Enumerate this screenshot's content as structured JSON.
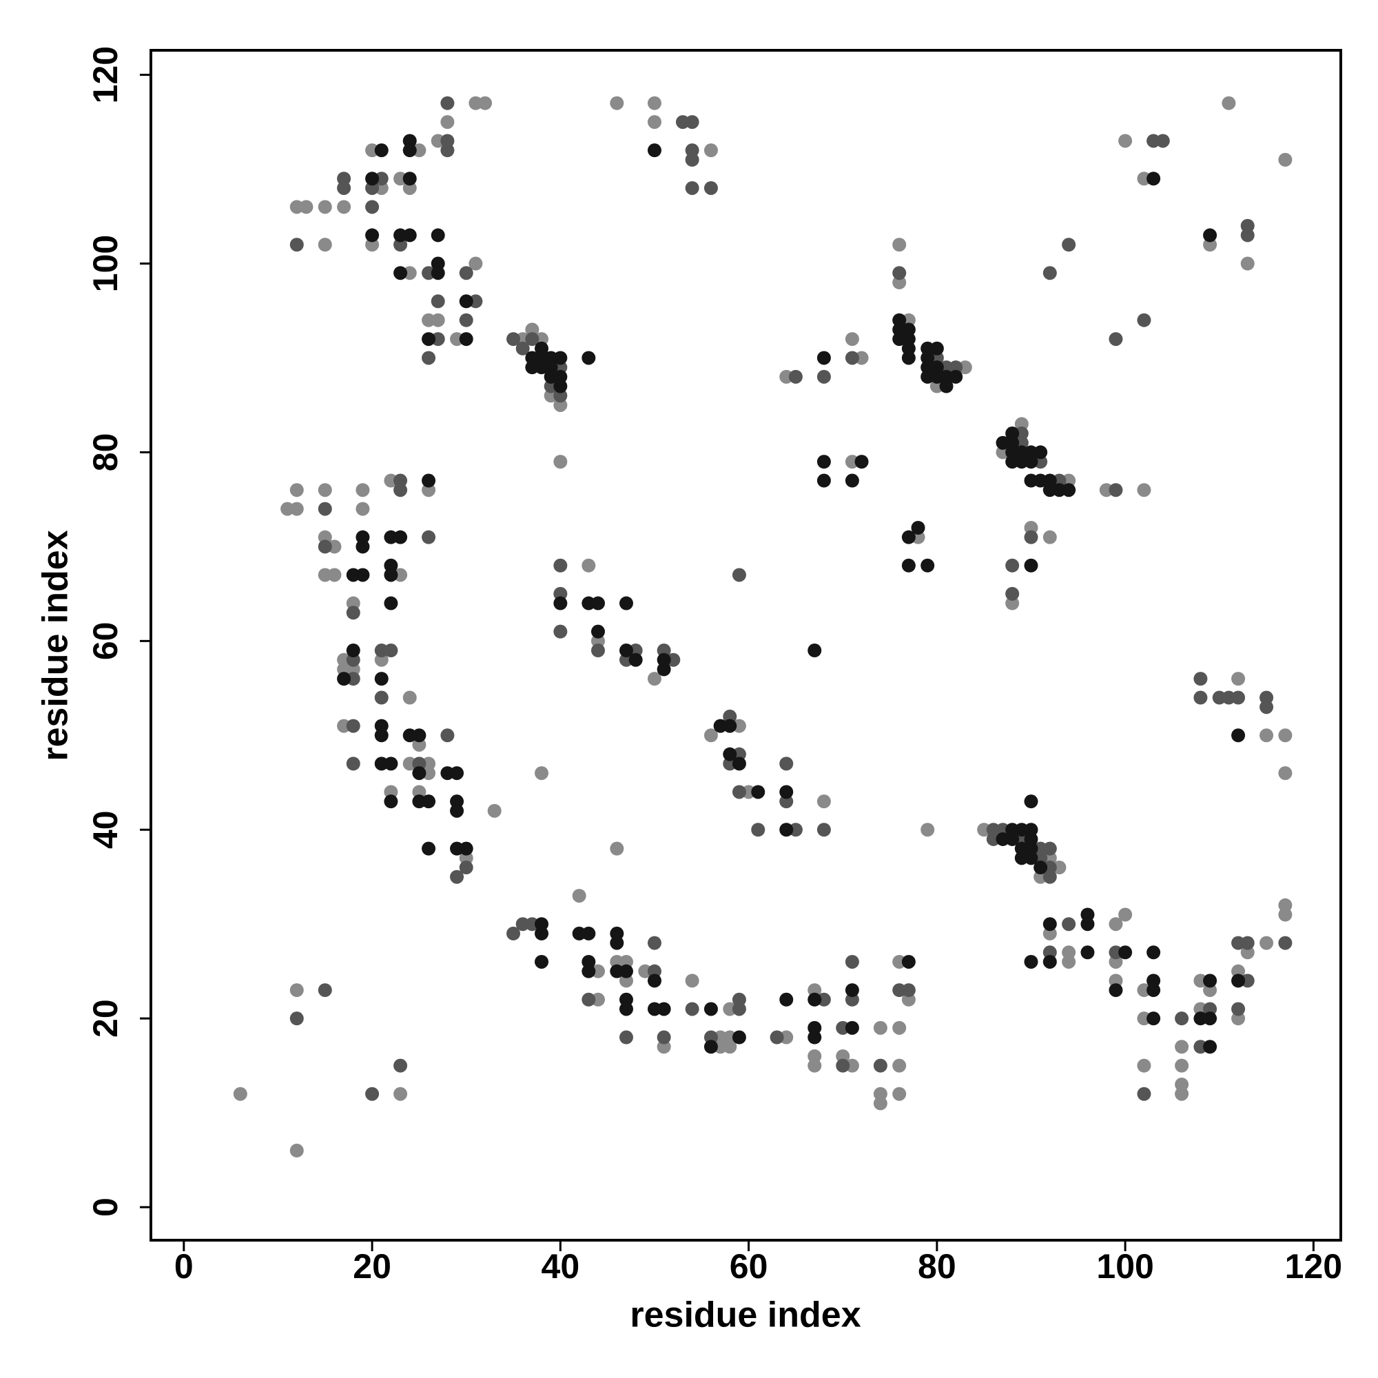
{
  "chart_data": {
    "type": "scatter",
    "xlabel": "residue index",
    "ylabel": "residue index",
    "xlim": [
      -3.5,
      122.9
    ],
    "ylim": [
      -3.5,
      122.6
    ],
    "xticks": [
      0,
      20,
      40,
      60,
      80,
      100,
      120
    ],
    "yticks": [
      0,
      20,
      40,
      60,
      80,
      100,
      120
    ],
    "series": [
      {
        "color": "#8a8a8a",
        "x": [
          31,
          32,
          28,
          27,
          20,
          25,
          23,
          21,
          24,
          12,
          13,
          15,
          17,
          15,
          20,
          31,
          24,
          26,
          27,
          29,
          36,
          37,
          38,
          39,
          40,
          46,
          50,
          50,
          56,
          100,
          102,
          111,
          117,
          109,
          113,
          76,
          76,
          77,
          83,
          80,
          64,
          71,
          72,
          71,
          89,
          87,
          94,
          98,
          102,
          78,
          90,
          92,
          88,
          11,
          12,
          12,
          15,
          19,
          19,
          15,
          16,
          22,
          26,
          15,
          16,
          23,
          18,
          17,
          17,
          18,
          21,
          24,
          17,
          24,
          26,
          26,
          25,
          22,
          25,
          33,
          30,
          40,
          43,
          44,
          50,
          56,
          59,
          60,
          68,
          38,
          46,
          79,
          85,
          92,
          93,
          91,
          112,
          115,
          117,
          117,
          117,
          117,
          115,
          113,
          112,
          108,
          109,
          108,
          112,
          106,
          106,
          106,
          106,
          100,
          99,
          99,
          99,
          102,
          102,
          102,
          92,
          94,
          94,
          42,
          44,
          46,
          47,
          49,
          47,
          44,
          54,
          51,
          57,
          57,
          58,
          58,
          58,
          64,
          67,
          67,
          67,
          70,
          71,
          74,
          74,
          74,
          76,
          77,
          76,
          76,
          76,
          12,
          6,
          12,
          23
        ],
        "values": [
          117,
          117,
          115,
          113,
          112,
          112,
          109,
          108,
          108,
          106,
          106,
          106,
          106,
          102,
          102,
          100,
          99,
          94,
          94,
          92,
          92,
          93,
          92,
          86,
          85,
          117,
          117,
          115,
          112,
          113,
          109,
          117,
          111,
          102,
          100,
          102,
          98,
          94,
          89,
          87,
          88,
          92,
          90,
          79,
          83,
          80,
          77,
          76,
          76,
          71,
          72,
          71,
          64,
          74,
          74,
          76,
          76,
          76,
          74,
          71,
          70,
          77,
          76,
          67,
          67,
          67,
          64,
          58,
          57,
          57,
          58,
          54,
          51,
          47,
          47,
          46,
          49,
          44,
          44,
          42,
          37,
          79,
          68,
          60,
          56,
          50,
          51,
          44,
          43,
          46,
          38,
          40,
          40,
          37,
          36,
          35,
          56,
          50,
          50,
          46,
          32,
          31,
          28,
          27,
          25,
          24,
          23,
          21,
          20,
          17,
          15,
          13,
          12,
          31,
          30,
          26,
          24,
          23,
          20,
          15,
          29,
          27,
          26,
          33,
          25,
          26,
          26,
          25,
          24,
          22,
          24,
          17,
          18,
          17,
          17,
          18,
          21,
          18,
          23,
          16,
          15,
          16,
          15,
          19,
          12,
          11,
          26,
          22,
          19,
          15,
          12,
          23,
          12,
          6,
          12
        ]
      },
      {
        "color": "#555555",
        "x": [
          28,
          28,
          28,
          17,
          21,
          17,
          20,
          20,
          12,
          23,
          26,
          30,
          27,
          31,
          30,
          27,
          26,
          35,
          36,
          37,
          39,
          40,
          40,
          53,
          54,
          54,
          54,
          54,
          56,
          103,
          104,
          113,
          113,
          94,
          92,
          102,
          99,
          76,
          80,
          81,
          82,
          65,
          68,
          71,
          89,
          89,
          91,
          93,
          99,
          90,
          88,
          88,
          15,
          15,
          23,
          23,
          26,
          18,
          18,
          18,
          21,
          22,
          21,
          18,
          28,
          18,
          25,
          30,
          29,
          40,
          40,
          40,
          44,
          48,
          47,
          51,
          52,
          59,
          58,
          59,
          58,
          59,
          64,
          64,
          61,
          65,
          68,
          86,
          87,
          86,
          89,
          91,
          92,
          91,
          92,
          92,
          108,
          108,
          110,
          111,
          112,
          115,
          115,
          117,
          112,
          113,
          113,
          109,
          112,
          106,
          108,
          99,
          102,
          94,
          92,
          35,
          36,
          37,
          50,
          50,
          43,
          54,
          47,
          51,
          56,
          59,
          59,
          63,
          68,
          70,
          70,
          71,
          71,
          74,
          76,
          77,
          15,
          12,
          20,
          23
        ],
        "values": [
          117,
          113,
          112,
          109,
          109,
          108,
          108,
          106,
          102,
          102,
          99,
          99,
          96,
          96,
          94,
          92,
          90,
          92,
          91,
          92,
          87,
          86,
          89,
          115,
          115,
          112,
          111,
          108,
          108,
          113,
          113,
          104,
          103,
          102,
          99,
          94,
          92,
          99,
          90,
          89,
          89,
          88,
          88,
          90,
          82,
          81,
          79,
          77,
          76,
          71,
          68,
          65,
          74,
          70,
          77,
          76,
          71,
          63,
          58,
          56,
          59,
          59,
          54,
          51,
          50,
          47,
          47,
          36,
          35,
          68,
          65,
          61,
          59,
          59,
          58,
          59,
          58,
          67,
          52,
          48,
          47,
          44,
          47,
          43,
          40,
          40,
          40,
          40,
          40,
          39,
          39,
          38,
          38,
          37,
          36,
          35,
          56,
          54,
          54,
          54,
          54,
          54,
          53,
          28,
          28,
          28,
          24,
          21,
          21,
          20,
          17,
          27,
          12,
          30,
          27,
          29,
          30,
          30,
          25,
          28,
          22,
          21,
          18,
          18,
          18,
          21,
          22,
          18,
          22,
          19,
          15,
          26,
          22,
          15,
          23,
          23,
          23,
          20,
          12,
          15
        ]
      },
      {
        "color": "#151515",
        "x": [
          24,
          21,
          24,
          20,
          24,
          20,
          23,
          24,
          27,
          27,
          23,
          27,
          30,
          26,
          30,
          38,
          38,
          37,
          37,
          38,
          39,
          39,
          40,
          39,
          40,
          40,
          43,
          50,
          103,
          109,
          76,
          76,
          77,
          76,
          77,
          77,
          77,
          79,
          80,
          79,
          79,
          80,
          79,
          80,
          81,
          82,
          81,
          68,
          68,
          68,
          71,
          72,
          87,
          88,
          88,
          88,
          89,
          90,
          91,
          88,
          89,
          90,
          90,
          91,
          92,
          92,
          93,
          94,
          78,
          77,
          77,
          79,
          90,
          19,
          19,
          22,
          23,
          26,
          18,
          19,
          22,
          22,
          22,
          18,
          17,
          21,
          21,
          21,
          24,
          25,
          21,
          22,
          25,
          28,
          29,
          22,
          25,
          26,
          29,
          29,
          26,
          29,
          30,
          40,
          43,
          44,
          47,
          44,
          47,
          48,
          51,
          51,
          67,
          57,
          58,
          58,
          59,
          61,
          64,
          64,
          87,
          88,
          89,
          90,
          88,
          90,
          89,
          90,
          89,
          90,
          91,
          90,
          112,
          112,
          109,
          108,
          109,
          109,
          100,
          103,
          99,
          103,
          103,
          103,
          92,
          96,
          96,
          96,
          90,
          92,
          38,
          38,
          38,
          42,
          43,
          46,
          46,
          43,
          43,
          46,
          47,
          50,
          47,
          47,
          50,
          51,
          56,
          56,
          59,
          64,
          67,
          67,
          67,
          71,
          71,
          77
        ],
        "values": [
          113,
          112,
          112,
          109,
          109,
          103,
          103,
          103,
          103,
          100,
          99,
          99,
          96,
          92,
          92,
          91,
          90,
          90,
          89,
          89,
          90,
          89,
          90,
          88,
          88,
          87,
          90,
          112,
          109,
          103,
          94,
          93,
          93,
          92,
          92,
          91,
          90,
          91,
          91,
          90,
          89,
          89,
          88,
          88,
          88,
          88,
          87,
          90,
          79,
          77,
          77,
          79,
          81,
          82,
          81,
          80,
          80,
          80,
          80,
          79,
          79,
          79,
          77,
          77,
          77,
          76,
          76,
          76,
          72,
          71,
          68,
          68,
          68,
          71,
          70,
          71,
          71,
          77,
          67,
          67,
          68,
          67,
          64,
          59,
          56,
          56,
          51,
          50,
          50,
          50,
          47,
          47,
          46,
          46,
          46,
          43,
          43,
          43,
          43,
          42,
          38,
          38,
          38,
          64,
          64,
          64,
          64,
          61,
          59,
          58,
          58,
          57,
          59,
          51,
          51,
          48,
          47,
          44,
          44,
          40,
          39,
          40,
          40,
          40,
          39,
          39,
          38,
          38,
          37,
          37,
          36,
          43,
          50,
          24,
          24,
          20,
          20,
          17,
          27,
          27,
          23,
          23,
          24,
          20,
          30,
          31,
          30,
          27,
          26,
          26,
          30,
          29,
          26,
          29,
          29,
          29,
          28,
          26,
          25,
          25,
          25,
          24,
          22,
          21,
          21,
          21,
          21,
          17,
          18,
          22,
          22,
          19,
          18,
          19,
          23,
          26
        ]
      }
    ]
  }
}
